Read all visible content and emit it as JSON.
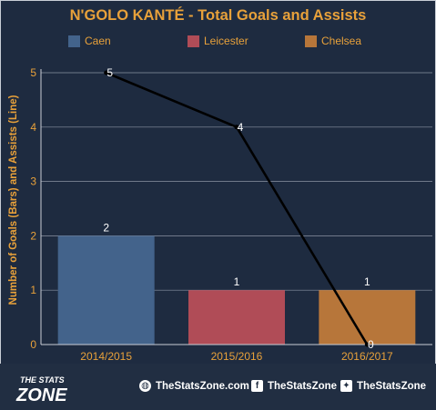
{
  "chart_data": {
    "type": "bar",
    "title": "N'GOLO KANTÉ  - Total Goals and Assists",
    "xlabel": "",
    "ylabel": "Number of Goals (Bars) and Assists (Line)",
    "categories": [
      "2014/2015",
      "2015/2016",
      "2016/2017"
    ],
    "series": [
      {
        "name": "Caen",
        "values": [
          2,
          null,
          null
        ]
      },
      {
        "name": "Leicester",
        "values": [
          null,
          1,
          null
        ]
      },
      {
        "name": "Chelsea",
        "values": [
          null,
          null,
          1
        ]
      }
    ],
    "bar_values": [
      2,
      1,
      1
    ],
    "bar_labels": [
      "2",
      "1",
      "1"
    ],
    "line": {
      "values": [
        5,
        4,
        0
      ],
      "labels": [
        "5",
        "4",
        "0"
      ],
      "color": "#000000"
    },
    "ylim": [
      0,
      5
    ],
    "yticks": [
      "0",
      "1",
      "2",
      "3",
      "4",
      "5"
    ],
    "grid": true,
    "legend_position": "top",
    "colors": {
      "Caen": "#43638b",
      "Leicester": "#b04c57",
      "Chelsea": "#b7763a"
    }
  },
  "footer": {
    "brand_line1": "THE STATS",
    "brand_line2": "ZONE",
    "website": "TheStatsZone.com",
    "facebook": "TheStatsZone",
    "twitter": "TheStatsZone",
    "globe_icon": "globe-icon",
    "facebook_icon": "facebook-icon",
    "twitter_icon": "twitter-icon"
  }
}
